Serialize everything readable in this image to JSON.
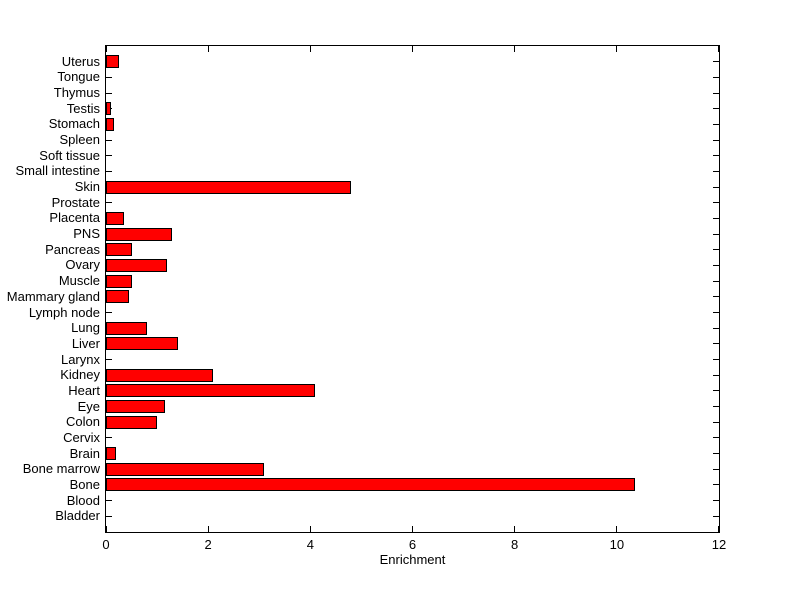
{
  "chart_data": {
    "type": "bar",
    "orientation": "horizontal",
    "title": "",
    "xlabel": "Enrichment",
    "ylabel": "",
    "xlim": [
      0,
      12
    ],
    "xticks": [
      0,
      2,
      4,
      6,
      8,
      10,
      12
    ],
    "grid": false,
    "legend": null,
    "bar_color": "#ff0000",
    "bar_edge_color": "#000000",
    "axis_color": "#000000",
    "background_color": "#ffffff",
    "categories": [
      "Uterus",
      "Tongue",
      "Thymus",
      "Testis",
      "Stomach",
      "Spleen",
      "Soft tissue",
      "Small intestine",
      "Skin",
      "Prostate",
      "Placenta",
      "PNS",
      "Pancreas",
      "Ovary",
      "Muscle",
      "Mammary gland",
      "Lymph node",
      "Lung",
      "Liver",
      "Larynx",
      "Kidney",
      "Heart",
      "Eye",
      "Colon",
      "Cervix",
      "Brain",
      "Bone marrow",
      "Bone",
      "Blood",
      "Bladder"
    ],
    "values": [
      0.25,
      0,
      0,
      0.1,
      0.15,
      0,
      0,
      0,
      4.8,
      0,
      0.35,
      1.3,
      0.5,
      1.2,
      0.5,
      0.45,
      0,
      0.8,
      1.4,
      0,
      2.1,
      4.1,
      1.15,
      1.0,
      0,
      0.2,
      3.1,
      10.35,
      0,
      0
    ]
  }
}
